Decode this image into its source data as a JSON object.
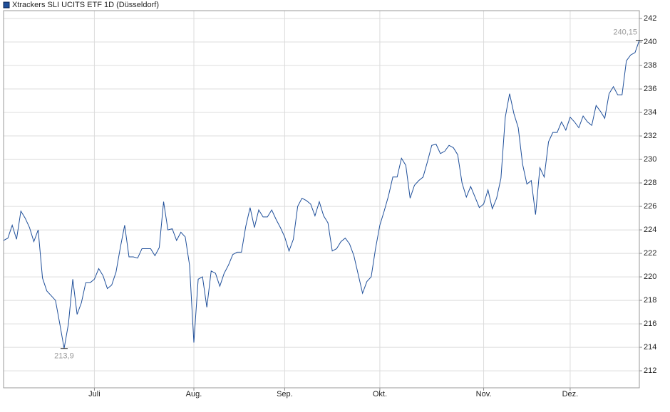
{
  "chart_data": {
    "type": "line",
    "series": [
      {
        "name": "Xtrackers SLI UCITS ETF 1D (Düsseldorf)",
        "color": "#1f4f9a",
        "values": [
          223.1,
          223.3,
          224.4,
          223.2,
          225.6,
          225.0,
          224.2,
          223.0,
          224.0,
          219.9,
          218.8,
          218.4,
          218.0,
          216.0,
          213.9,
          216.0,
          219.8,
          216.8,
          217.8,
          219.5,
          219.5,
          219.8,
          220.7,
          220.1,
          219.0,
          219.3,
          220.4,
          222.5,
          224.4,
          221.7,
          221.7,
          221.6,
          222.4,
          222.4,
          222.4,
          221.8,
          222.5,
          226.4,
          224.0,
          224.1,
          223.1,
          223.8,
          223.4,
          221.0,
          214.4,
          219.8,
          220.0,
          217.4,
          220.5,
          220.3,
          219.2,
          220.3,
          221.0,
          221.9,
          222.1,
          222.1,
          224.3,
          225.9,
          224.2,
          225.7,
          225.1,
          225.1,
          225.7,
          224.9,
          224.2,
          223.4,
          222.2,
          223.2,
          226.0,
          226.7,
          226.5,
          226.2,
          225.2,
          226.4,
          225.2,
          224.6,
          222.2,
          222.4,
          223.0,
          223.3,
          222.8,
          221.8,
          220.2,
          218.6,
          219.6,
          220.0,
          222.4,
          224.4,
          225.6,
          226.9,
          228.5,
          228.5,
          230.1,
          229.5,
          226.7,
          227.8,
          228.2,
          228.5,
          229.8,
          231.2,
          231.3,
          230.5,
          230.7,
          231.2,
          231.0,
          230.4,
          228.0,
          226.8,
          227.7,
          226.8,
          225.9,
          226.2,
          227.4,
          225.8,
          226.7,
          228.4,
          233.6,
          235.6,
          233.9,
          232.7,
          229.6,
          227.9,
          228.2,
          225.3,
          229.3,
          228.5,
          231.5,
          232.3,
          232.3,
          233.2,
          232.5,
          233.6,
          233.2,
          232.7,
          233.7,
          233.2,
          232.9,
          234.6,
          234.1,
          233.5,
          235.6,
          236.2,
          235.5,
          235.5,
          238.4,
          238.9,
          239.1,
          240.15
        ],
        "value_labels": {
          "14": "213,9",
          "147": "240,15"
        }
      }
    ],
    "xlim": [
      0,
      147
    ],
    "xticks": [
      {
        "value": 21,
        "label": "Juli"
      },
      {
        "value": 44,
        "label": "Aug."
      },
      {
        "value": 65,
        "label": "Sep."
      },
      {
        "value": 87,
        "label": "Okt."
      },
      {
        "value": 111,
        "label": "Nov."
      },
      {
        "value": 131,
        "label": "Dez."
      }
    ],
    "ylim": [
      210.55,
      242.67
    ],
    "yticks": [
      212,
      214,
      216,
      218,
      220,
      222,
      224,
      226,
      228,
      230,
      232,
      234,
      236,
      238,
      240,
      242
    ],
    "grid": true
  }
}
